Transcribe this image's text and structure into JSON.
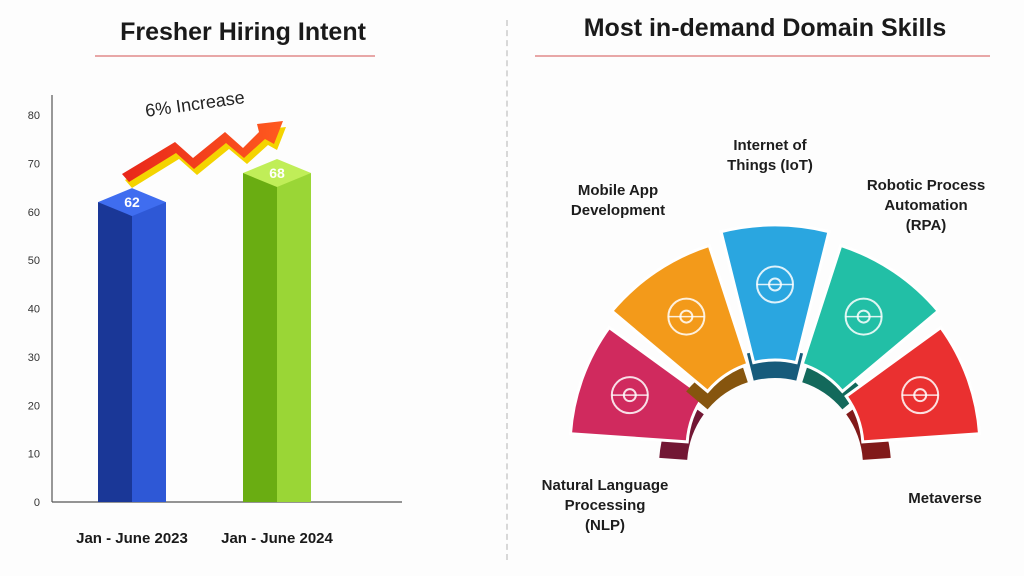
{
  "left_panel": {
    "title": "Fresher Hiring Intent"
  },
  "right_panel": {
    "title": "Most in-demand Domain Skills"
  },
  "chart_data": [
    {
      "type": "bar",
      "title": "Fresher Hiring Intent",
      "categories": [
        "Jan - June 2023",
        "Jan - June 2024"
      ],
      "values": [
        62,
        68
      ],
      "data_labels": [
        "62",
        "68"
      ],
      "ylim": [
        0,
        80
      ],
      "yticks": [
        "0",
        "10",
        "20",
        "30",
        "40",
        "50",
        "60",
        "70",
        "80"
      ],
      "annotation": "6% Increase",
      "colors": [
        "#1f3fae",
        "#8bc824"
      ],
      "grid": false
    }
  ],
  "skills": {
    "items": [
      {
        "label": "Natural Language\nProcessing\n(NLP)",
        "icon": "brain-head-icon",
        "color": "#d02a5e"
      },
      {
        "label": "Mobile App\nDevelopment",
        "icon": "mobile-phone-icon",
        "color": "#f39a1a"
      },
      {
        "label": "Internet of\nThings (IoT)",
        "icon": "globe-network-icon",
        "color": "#2aa6e0"
      },
      {
        "label": "Robotic Process\nAutomation\n(RPA)",
        "icon": "robot-arm-icon",
        "color": "#22bfa6"
      },
      {
        "label": "Metaverse",
        "icon": "vr-headset-icon",
        "color": "#ea3030"
      }
    ]
  }
}
